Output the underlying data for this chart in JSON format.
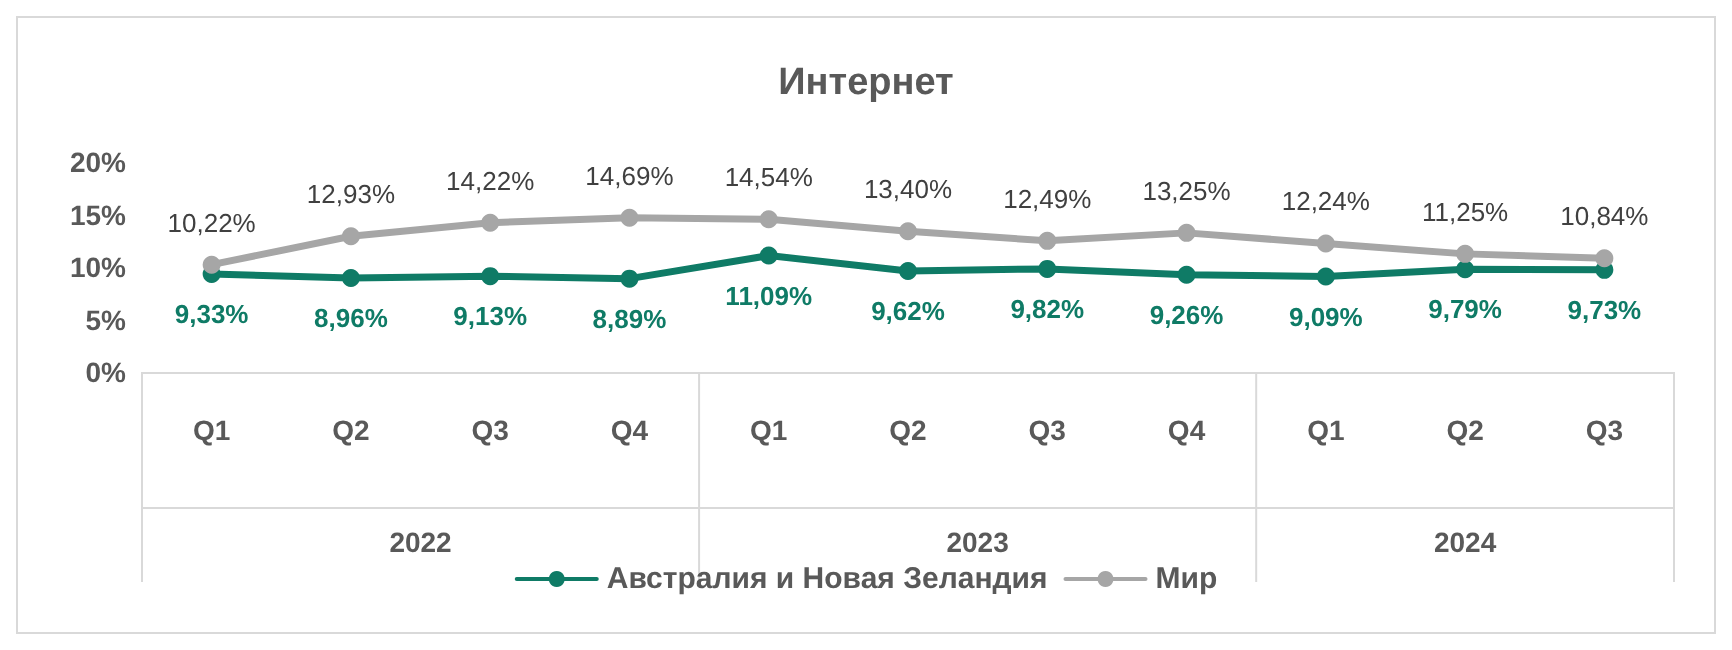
{
  "chart_data": {
    "type": "line",
    "title": "Интернет",
    "categories": [
      "Q1",
      "Q2",
      "Q3",
      "Q4",
      "Q1",
      "Q2",
      "Q3",
      "Q4",
      "Q1",
      "Q2",
      "Q3"
    ],
    "annotations": [
      "2022",
      "2023",
      "2024"
    ],
    "series": [
      {
        "name": "Австралия и Новая Зеландия",
        "color": "#0f7b66",
        "values": [
          9.33,
          8.96,
          9.13,
          8.89,
          11.09,
          9.62,
          9.82,
          9.26,
          9.09,
          9.79,
          9.73
        ],
        "value_labels": [
          "9,33%",
          "8,96%",
          "9,13%",
          "8,89%",
          "11,09%",
          "9,62%",
          "9,82%",
          "9,26%",
          "9,09%",
          "9,79%",
          "9,73%"
        ]
      },
      {
        "name": "Мир",
        "color": "#a6a6a6",
        "values": [
          10.22,
          12.93,
          14.22,
          14.69,
          14.54,
          13.4,
          12.49,
          13.25,
          12.24,
          11.25,
          10.84
        ],
        "value_labels": [
          "10,22%",
          "12,93%",
          "14,22%",
          "14,69%",
          "14,54%",
          "13,40%",
          "12,49%",
          "13,25%",
          "12,24%",
          "11,25%",
          "10,84%"
        ]
      }
    ],
    "ylim": [
      0,
      20
    ],
    "yticks": [
      {
        "value": 0,
        "label": "0%"
      },
      {
        "value": 5,
        "label": "5%"
      },
      {
        "value": 10,
        "label": "10%"
      },
      {
        "value": 15,
        "label": "15%"
      },
      {
        "value": 20,
        "label": "20%"
      }
    ],
    "grid": false,
    "legend": "bottom",
    "marker": "circle",
    "line_style": "solid"
  }
}
